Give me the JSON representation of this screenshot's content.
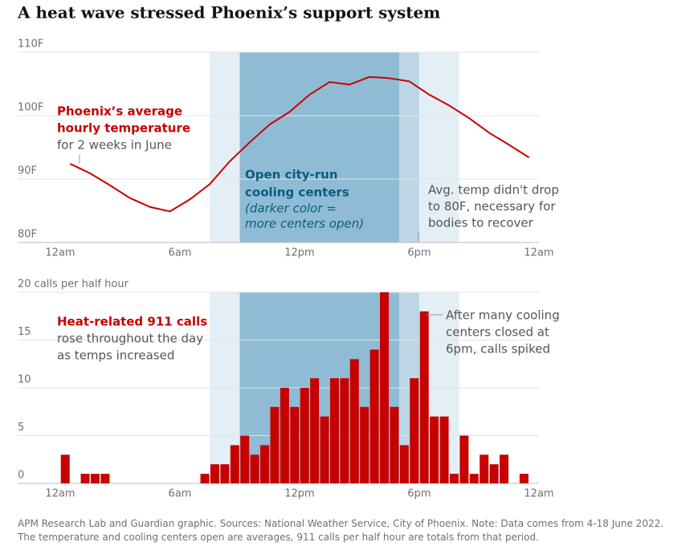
{
  "title": "A heat wave stressed Phoenix’s support system",
  "source": "APM Research Lab and Guardian graphic. Sources: National Weather Service, City of Phoenix. Note: Data comes from 4-18 June 2022. The temperature and cooling centers open are averages, 911 calls per half hour are totals from that period.",
  "chart_data": [
    {
      "type": "line",
      "color": "#c70000",
      "x": [
        0.5,
        1.5,
        2.5,
        3.5,
        4.5,
        5.5,
        6.5,
        7.5,
        8.5,
        9.5,
        10.5,
        11.5,
        12.5,
        13.5,
        14.5,
        15.5,
        16.5,
        17.5,
        18.5,
        19.5,
        20.5,
        21.5,
        22.5,
        23.5
      ],
      "values": [
        92.4,
        90.9,
        89.0,
        87.0,
        85.6,
        84.9,
        86.8,
        89.2,
        92.8,
        95.8,
        98.6,
        100.6,
        103.3,
        105.3,
        104.9,
        106.1,
        105.9,
        105.4,
        103.3,
        101.6,
        99.6,
        97.3,
        95.4,
        93.4
      ],
      "xlim": [
        0,
        24
      ],
      "xticks": [
        {
          "value": 0,
          "label": "12am"
        },
        {
          "value": 6,
          "label": "6am"
        },
        {
          "value": 12,
          "label": "12pm"
        },
        {
          "value": 18,
          "label": "6pm"
        },
        {
          "value": 24,
          "label": "12am"
        }
      ],
      "ylim": [
        80,
        110
      ],
      "yticks": [
        {
          "value": 80,
          "label": "80F"
        },
        {
          "value": 90,
          "label": "90F"
        },
        {
          "value": 100,
          "label": "100F"
        },
        {
          "value": 110,
          "label": "110F"
        }
      ],
      "grid": true,
      "bands": [
        {
          "start": 7.5,
          "end": 20,
          "color": "#e4eef5"
        },
        {
          "start": 9,
          "end": 17,
          "color": "#8fbcd4"
        },
        {
          "start": 17,
          "end": 18,
          "color": "#bcd6e5"
        }
      ],
      "annotations": [
        {
          "lines": [
            "Phoenix’s average",
            "hourly temperature"
          ],
          "color": "#c70000"
        },
        {
          "lines": [
            "for 2 weeks in June"
          ],
          "color": "#555555"
        },
        {
          "lines": [
            "Open city-run",
            "cooling centers"
          ],
          "color": "#0b5c80"
        },
        {
          "lines": [
            "(darker color =",
            "more centers open)"
          ],
          "color": "#0b5c80"
        },
        {
          "lines": [
            "Avg. temp didn't drop",
            "to 80F, necessary for",
            "bodies to recover"
          ],
          "color": "#555555"
        }
      ]
    },
    {
      "type": "histogram",
      "color": "#c70000",
      "bins": [
        0,
        0.5,
        1,
        1.5,
        2,
        2.5,
        3,
        3.5,
        4,
        4.5,
        5,
        5.5,
        6,
        6.5,
        7,
        7.5,
        8,
        8.5,
        9,
        9.5,
        10,
        10.5,
        11,
        11.5,
        12,
        12.5,
        13,
        13.5,
        14,
        14.5,
        15,
        15.5,
        16,
        16.5,
        17,
        17.5,
        18,
        18.5,
        19,
        19.5,
        20,
        20.5,
        21,
        21.5,
        22,
        22.5,
        23,
        23.5,
        24
      ],
      "values": [
        3,
        0,
        1,
        1,
        1,
        0,
        0,
        0,
        0,
        0,
        0,
        0,
        0,
        0,
        1,
        2,
        2,
        4,
        5,
        3,
        4,
        8,
        10,
        8,
        10,
        11,
        7,
        11,
        11,
        13,
        8,
        14,
        20,
        8,
        4,
        11,
        18,
        7,
        7,
        1,
        5,
        1,
        3,
        2,
        3,
        0,
        1,
        0
      ],
      "xlim": [
        0,
        24
      ],
      "xticks": [
        {
          "value": 0,
          "label": "12am"
        },
        {
          "value": 6,
          "label": "6am"
        },
        {
          "value": 12,
          "label": "12pm"
        },
        {
          "value": 18,
          "label": "6pm"
        },
        {
          "value": 24,
          "label": "12am"
        }
      ],
      "ylim": [
        0,
        20
      ],
      "yticks": [
        0,
        5,
        10,
        15,
        {
          "value": 20,
          "label": "20 calls per half hour"
        }
      ],
      "grid": true,
      "bands": [
        {
          "start": 7.5,
          "end": 20,
          "color": "#e4eef5"
        },
        {
          "start": 9,
          "end": 17,
          "color": "#8fbcd4"
        },
        {
          "start": 17,
          "end": 18,
          "color": "#bcd6e5"
        }
      ],
      "annotations": [
        {
          "lines": [
            "Heat-related 911 calls"
          ],
          "color": "#c70000"
        },
        {
          "lines": [
            "rose throughout the day",
            "as temps increased"
          ],
          "color": "#555555"
        },
        {
          "lines": [
            "After many cooling",
            "centers closed at",
            "6pm, calls spiked"
          ],
          "color": "#555555"
        }
      ]
    }
  ]
}
